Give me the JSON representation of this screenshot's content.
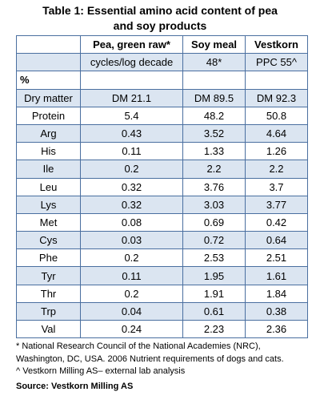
{
  "title_line1": "Table 1: Essential amino acid content of pea",
  "title_line2": "and soy products",
  "header": [
    "",
    "Pea, green raw*",
    "Soy meal",
    "Vestkorn"
  ],
  "subheader": [
    "",
    "cycles/log decade",
    "48*",
    "PPC 55^"
  ],
  "unit_row": [
    "%",
    "",
    "",
    ""
  ],
  "rows": [
    [
      "Dry matter",
      "DM 21.1",
      "DM 89.5",
      "DM 92.3"
    ],
    [
      "Protein",
      "5.4",
      "48.2",
      "50.8"
    ],
    [
      "Arg",
      "0.43",
      "3.52",
      "4.64"
    ],
    [
      "His",
      "0.11",
      "1.33",
      "1.26"
    ],
    [
      "Ile",
      "0.2",
      "2.2",
      "2.2"
    ],
    [
      "Leu",
      "0.32",
      "3.76",
      "3.7"
    ],
    [
      "Lys",
      "0.32",
      "3.03",
      "3.77"
    ],
    [
      "Met",
      "0.08",
      "0.69",
      "0.42"
    ],
    [
      "Cys",
      "0.03",
      "0.72",
      "0.64"
    ],
    [
      "Phe",
      "0.2",
      "2.53",
      "2.51"
    ],
    [
      "Tyr",
      "0.11",
      "1.95",
      "1.61"
    ],
    [
      "Thr",
      "0.2",
      "1.91",
      "1.84"
    ],
    [
      "Trp",
      "0.04",
      "0.61",
      "0.38"
    ],
    [
      "Val",
      "0.24",
      "2.23",
      "2.36"
    ]
  ],
  "footnotes": {
    "nrc_line1": "* National Research Council of the National Academies (NRC),",
    "nrc_line2": "Washington, DC, USA. 2006 Nutrient requirements of dogs and cats.",
    "vestkorn": "^ Vestkorn Milling AS– external lab analysis",
    "source": "Source: Vestkorn Milling AS"
  },
  "colors": {
    "row_band": "#dbe5f1",
    "border": "#4a6fa0"
  }
}
